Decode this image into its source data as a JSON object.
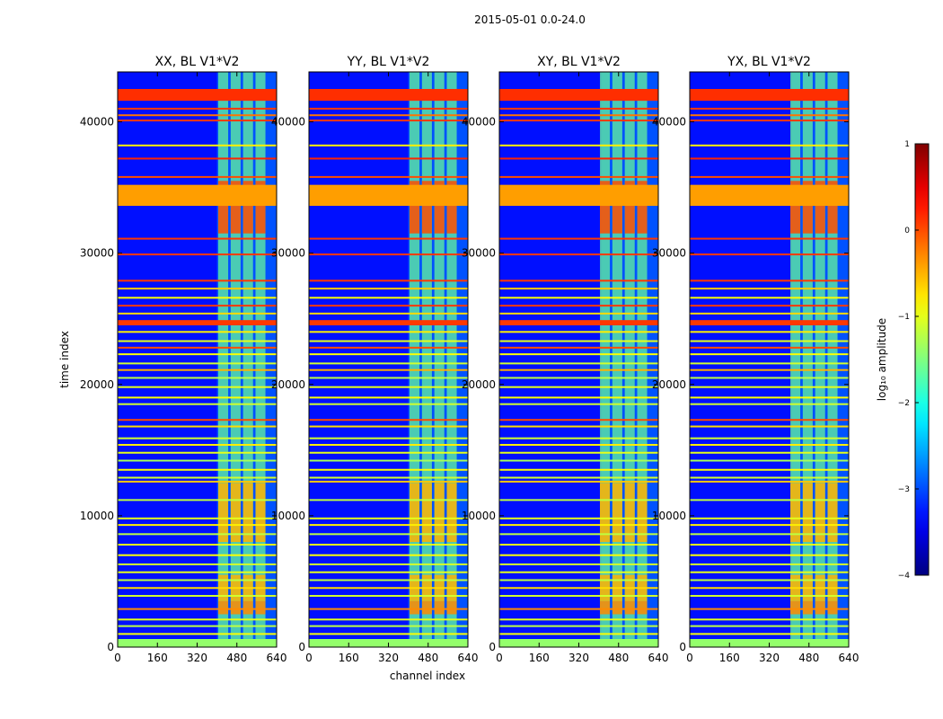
{
  "figure": {
    "suptitle": "2015-05-01 0.0-24.0"
  },
  "chart_data": {
    "type": "heatmap",
    "title": "2015-05-01 0.0-24.0",
    "xlabel": "channel index",
    "ylabel": "time index",
    "xlim": [
      0,
      640
    ],
    "ylim": [
      0,
      43800
    ],
    "x_ticks": [
      0,
      160,
      320,
      480,
      640
    ],
    "y_ticks": [
      0,
      10000,
      20000,
      30000,
      40000
    ],
    "panels": [
      {
        "title": "XX, BL V1*V2",
        "source_x_start": 400
      },
      {
        "title": "YY, BL V1*V2",
        "source_x_start": 400
      },
      {
        "title": "XY, BL V1*V2",
        "source_x_start": 410
      },
      {
        "title": "YX, BL V1*V2",
        "source_x_start": 410
      }
    ],
    "source_block_channels": [
      [
        405,
        445
      ],
      [
        455,
        495
      ],
      [
        505,
        545
      ],
      [
        555,
        595
      ]
    ],
    "colorbar": {
      "label": "log₁₀ amplitude",
      "range": [
        -4,
        1
      ],
      "ticks": [
        1,
        0,
        -1,
        -2,
        -3,
        -4
      ],
      "tick_labels": [
        "1",
        "0",
        "−1",
        "−2",
        "−3",
        "−4"
      ]
    },
    "background_level": -3.3,
    "source_level": -1.6,
    "hot_bands": [
      {
        "t_start": 41600,
        "t_end": 42500,
        "level": 0.15
      },
      {
        "t_start": 33600,
        "t_end": 35200,
        "level": -0.4
      },
      {
        "t_start": 24500,
        "t_end": 24900,
        "level": 0.1
      },
      {
        "t_start": 300,
        "t_end": 0,
        "level": -1.4
      }
    ],
    "hot_source_spans": [
      {
        "t_start": 31500,
        "t_end": 35500,
        "level": 0.0
      },
      {
        "t_start": 8000,
        "t_end": 12500,
        "level": -0.5
      },
      {
        "t_start": 3500,
        "t_end": 5500,
        "level": -0.5
      },
      {
        "t_start": 2500,
        "t_end": 3500,
        "level": -0.3
      }
    ],
    "rfi_lines": [
      {
        "t": 41000,
        "level": 0.1
      },
      {
        "t": 40500,
        "level": -0.2
      },
      {
        "t": 40100,
        "level": 0.1
      },
      {
        "t": 38200,
        "level": -0.8
      },
      {
        "t": 37200,
        "level": 0.2
      },
      {
        "t": 35800,
        "level": 0.0
      },
      {
        "t": 31100,
        "level": 0.1
      },
      {
        "t": 29900,
        "level": 0.1
      },
      {
        "t": 27900,
        "level": 0.1
      },
      {
        "t": 27300,
        "level": -0.6
      },
      {
        "t": 26600,
        "level": -0.9
      },
      {
        "t": 26000,
        "level": 0.1
      },
      {
        "t": 25400,
        "level": -0.7
      },
      {
        "t": 24000,
        "level": -0.8
      },
      {
        "t": 23300,
        "level": -1.0
      },
      {
        "t": 22800,
        "level": 0.0
      },
      {
        "t": 22300,
        "level": -0.9
      },
      {
        "t": 21600,
        "level": -1.1
      },
      {
        "t": 21100,
        "level": -0.5
      },
      {
        "t": 20500,
        "level": -1.2
      },
      {
        "t": 19800,
        "level": -1.0
      },
      {
        "t": 19000,
        "level": -0.9
      },
      {
        "t": 18500,
        "level": -1.1
      },
      {
        "t": 17300,
        "level": 0.0
      },
      {
        "t": 16800,
        "level": -0.7
      },
      {
        "t": 15900,
        "level": -1.1
      },
      {
        "t": 15400,
        "level": -0.8
      },
      {
        "t": 14800,
        "level": -1.0
      },
      {
        "t": 14200,
        "level": -1.3
      },
      {
        "t": 13500,
        "level": -0.9
      },
      {
        "t": 12900,
        "level": -1.1
      },
      {
        "t": 12600,
        "level": -0.6
      },
      {
        "t": 11200,
        "level": -1.2
      },
      {
        "t": 9800,
        "level": -1.0
      },
      {
        "t": 9300,
        "level": -0.8
      },
      {
        "t": 8600,
        "level": -1.2
      },
      {
        "t": 7800,
        "level": -1.0
      },
      {
        "t": 7000,
        "level": -0.9
      },
      {
        "t": 6300,
        "level": -1.1
      },
      {
        "t": 5700,
        "level": -1.0
      },
      {
        "t": 5100,
        "level": -1.2
      },
      {
        "t": 4500,
        "level": -0.7
      },
      {
        "t": 3900,
        "level": -1.1
      },
      {
        "t": 2900,
        "level": -0.3
      },
      {
        "t": 2100,
        "level": -1.0
      },
      {
        "t": 1600,
        "level": -1.2
      },
      {
        "t": 1000,
        "level": -0.9
      }
    ]
  }
}
